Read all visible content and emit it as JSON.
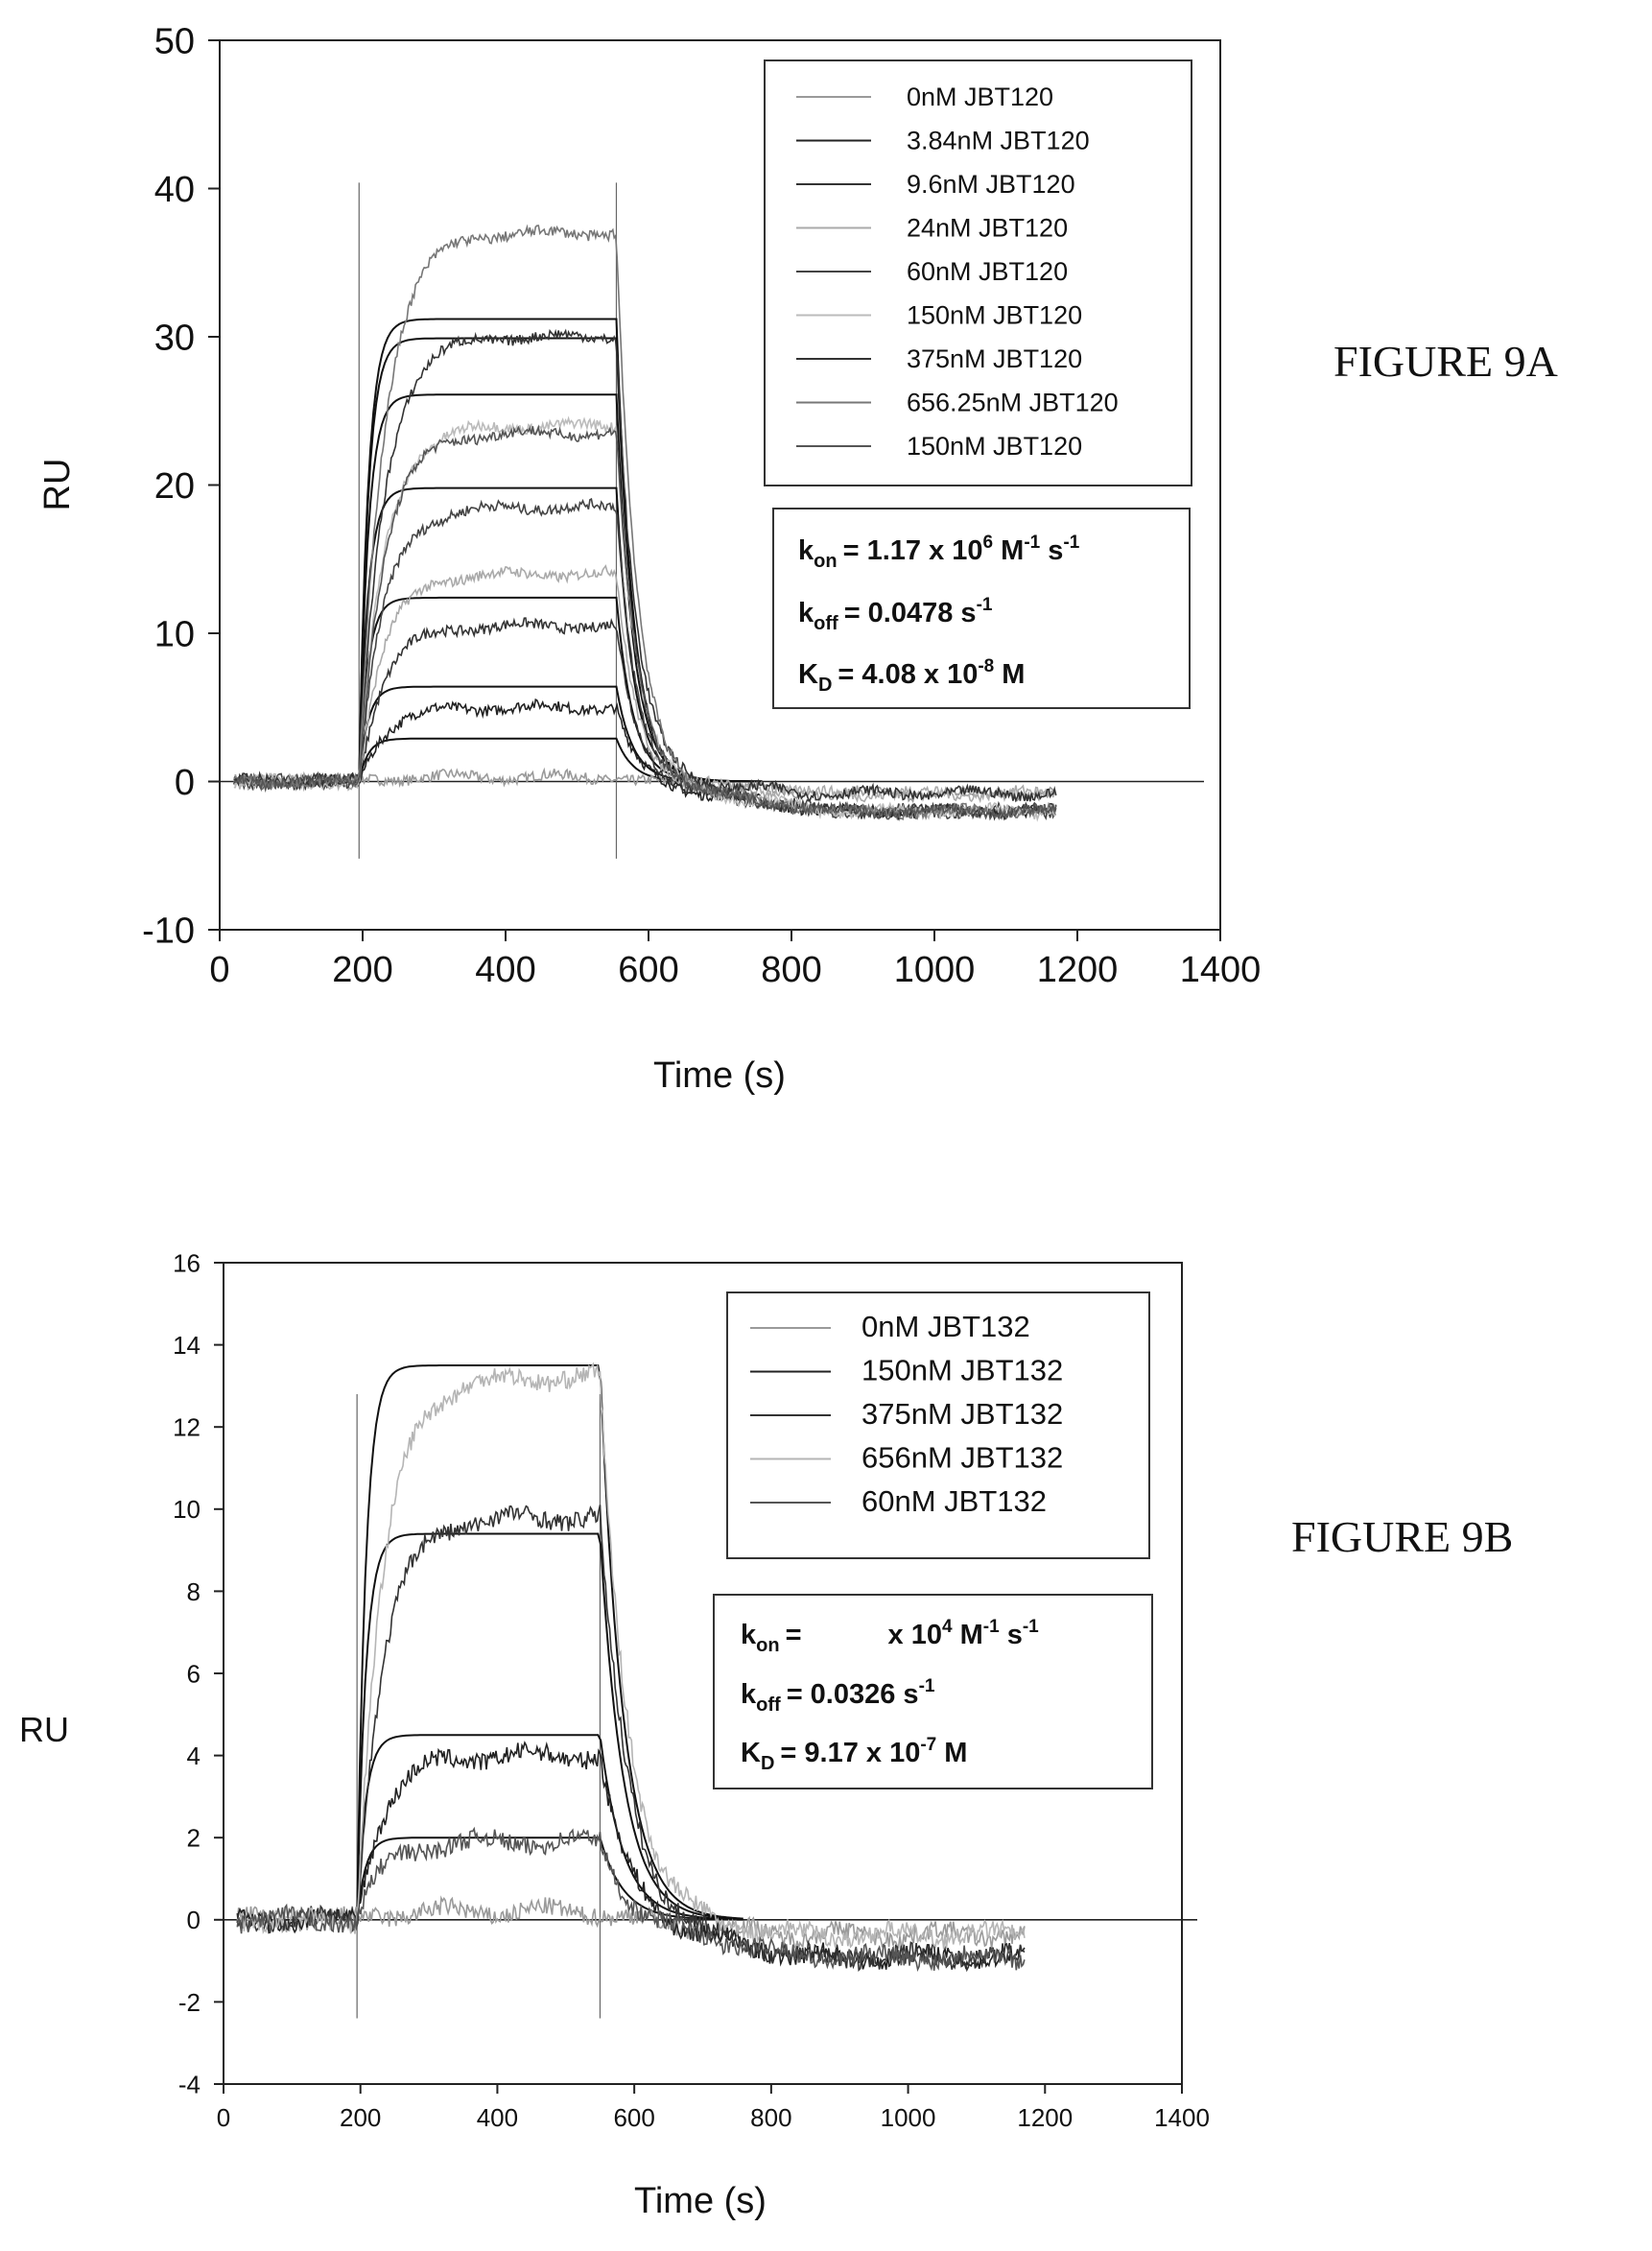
{
  "chart_data": [
    {
      "id": "9A",
      "type": "line",
      "figure_label": "FIGURE 9A",
      "xlabel": "Time (s)",
      "ylabel": "RU",
      "xlim": [
        0,
        1400
      ],
      "ylim": [
        -10,
        50
      ],
      "x_ticks": [
        "0",
        "200",
        "400",
        "600",
        "800",
        "1000",
        "1200",
        "1400"
      ],
      "y_ticks": [
        "-10",
        "0",
        "10",
        "20",
        "30",
        "40",
        "50"
      ],
      "grid": false,
      "legend_position": "top-right",
      "inject_start": 195,
      "inject_end": 555,
      "series": [
        {
          "name": "0nM JBT120",
          "color": "#9a9a9a",
          "plateau": 0.3
        },
        {
          "name": "3.84nM JBT120",
          "color": "#222222",
          "plateau": 5.0
        },
        {
          "name": "9.6nM JBT120",
          "color": "#333333",
          "plateau": 10.5
        },
        {
          "name": "24nM JBT120",
          "color": "#aaaaaa",
          "plateau": 14.0
        },
        {
          "name": "60nM JBT120",
          "color": "#444444",
          "plateau": 18.5
        },
        {
          "name": "150nM JBT120",
          "color": "#bbbbbb",
          "plateau": 24.0
        },
        {
          "name": "375nM JBT120",
          "color": "#333333",
          "plateau": 30.0
        },
        {
          "name": "656.25nM JBT120",
          "color": "#777777",
          "plateau": 37.0
        },
        {
          "name": "150nM JBT120",
          "color": "#555555",
          "plateau": 23.5
        }
      ],
      "fit_plateaus": [
        2.9,
        6.4,
        12.4,
        19.8,
        26.1,
        29.9,
        31.2
      ],
      "kinetics": {
        "kon_label": "k",
        "kon_sub": "on",
        "kon_value": "= 1.17 x 10",
        "kon_exp": "6",
        "kon_unit1": " M",
        "kon_unit1_exp": "-1",
        "kon_unit2": " s",
        "kon_unit2_exp": "-1",
        "koff_label": "k",
        "koff_sub": "off",
        "koff_value": "= 0.0478 s",
        "koff_exp": "-1",
        "kd_label": "K",
        "kd_sub": "D",
        "kd_value": "= 4.08 x 10",
        "kd_exp": "-8",
        "kd_unit": " M"
      }
    },
    {
      "id": "9B",
      "type": "line",
      "figure_label": "FIGURE 9B",
      "xlabel": "Time (s)",
      "ylabel": "RU",
      "xlim": [
        0,
        1400
      ],
      "ylim": [
        -4,
        16
      ],
      "x_ticks": [
        "0",
        "200",
        "400",
        "600",
        "800",
        "1000",
        "1200",
        "1400"
      ],
      "y_ticks": [
        "-4",
        "-2",
        "0",
        "2",
        "4",
        "6",
        "8",
        "10",
        "12",
        "14",
        "16"
      ],
      "grid": false,
      "legend_position": "top-right",
      "inject_start": 195,
      "inject_end": 550,
      "series": [
        {
          "name": "0nM JBT132",
          "color": "#9a9a9a",
          "plateau": 0.2
        },
        {
          "name": "150nM JBT132",
          "color": "#222222",
          "plateau": 4.0
        },
        {
          "name": "375nM JBT132",
          "color": "#333333",
          "plateau": 9.8
        },
        {
          "name": "656nM JBT132",
          "color": "#b5b5b5",
          "plateau": 13.2
        },
        {
          "name": "60nM JBT132",
          "color": "#555555",
          "plateau": 1.9
        }
      ],
      "fit_plateaus": [
        2.0,
        4.5,
        9.4,
        13.5
      ],
      "kinetics": {
        "kon_label": "k",
        "kon_sub": "on",
        "kon_value": "=",
        "kon_mid": "x 10",
        "kon_exp": "4",
        "kon_unit1": " M",
        "kon_unit1_exp": "-1",
        "kon_unit2": " s",
        "kon_unit2_exp": "-1",
        "koff_label": "k",
        "koff_sub": "off",
        "koff_value": "= 0.0326 s",
        "koff_exp": "-1",
        "kd_label": "K",
        "kd_sub": "D",
        "kd_value": "= 9.17 x 10",
        "kd_exp": "-7",
        "kd_unit": " M"
      }
    }
  ]
}
